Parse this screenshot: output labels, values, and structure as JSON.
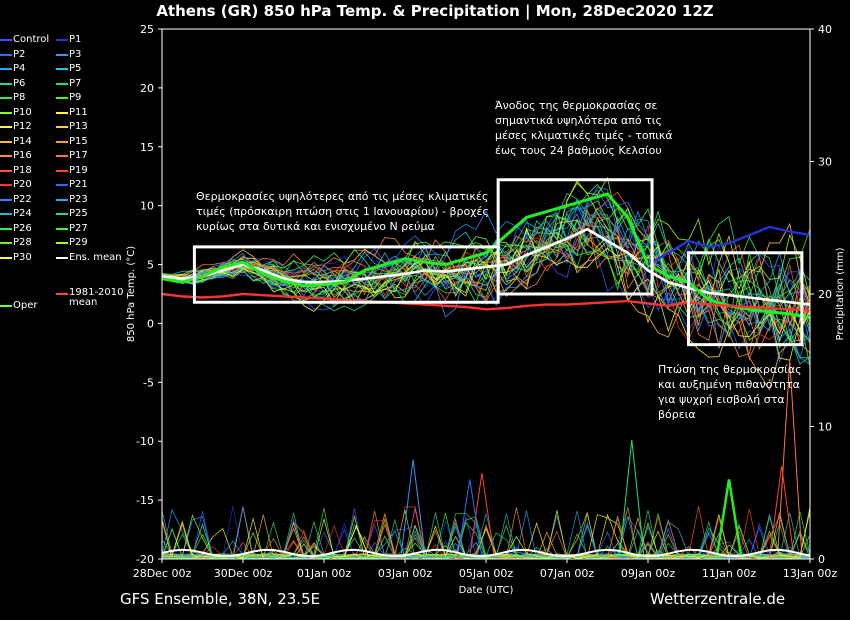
{
  "title": "Athens  (GR)  850 hPa Temp. & Precipitation | Mon, 28Dec2020 12Z",
  "footer_left": "GFS Ensemble, 38N, 23.5E",
  "footer_right": "Wetterzentrale.de",
  "chart_data": {
    "type": "line",
    "xlabel": "Date (UTC)",
    "ylabel": "850 hPa Temp. (°C)",
    "y2label": "Precipitation (mm)",
    "x_ticks": [
      "28Dec 00z",
      "30Dec 00z",
      "01Jan 00z",
      "03Jan 00z",
      "05Jan 00z",
      "07Jan 00z",
      "09Jan 00z",
      "11Jan 00z",
      "13Jan 00z"
    ],
    "x_tick_days": [
      0,
      2,
      4,
      6,
      8,
      10,
      12,
      14,
      16
    ],
    "xlim_days": [
      0,
      16
    ],
    "ylim": [
      -20,
      25
    ],
    "y_ticks": [
      -20,
      -15,
      -10,
      -5,
      0,
      5,
      10,
      15,
      20,
      25
    ],
    "y2lim": [
      0,
      40
    ],
    "y2_ticks": [
      0,
      10,
      20,
      30,
      40
    ],
    "grid": false,
    "legend_placement": "left outside",
    "legend": [
      {
        "name": "Control",
        "color": "#3355ff"
      },
      {
        "name": "P1",
        "color": "#2233dd"
      },
      {
        "name": "P2",
        "color": "#2f6bff"
      },
      {
        "name": "P3",
        "color": "#3399ff"
      },
      {
        "name": "P4",
        "color": "#22aaff"
      },
      {
        "name": "P5",
        "color": "#22ccdd"
      },
      {
        "name": "P6",
        "color": "#22dd99"
      },
      {
        "name": "P7",
        "color": "#22dd77"
      },
      {
        "name": "P8",
        "color": "#33ee55"
      },
      {
        "name": "P9",
        "color": "#55ee22"
      },
      {
        "name": "P10",
        "color": "#88ff22"
      },
      {
        "name": "P11",
        "color": "#ffff22"
      },
      {
        "name": "P12",
        "color": "#ffee55"
      },
      {
        "name": "P13",
        "color": "#ffcc44"
      },
      {
        "name": "P14",
        "color": "#ffbb33"
      },
      {
        "name": "P15",
        "color": "#ff9933"
      },
      {
        "name": "P16",
        "color": "#ff8844"
      },
      {
        "name": "P17",
        "color": "#ff7744"
      },
      {
        "name": "P18",
        "color": "#ff5533"
      },
      {
        "name": "P19",
        "color": "#ff4422"
      },
      {
        "name": "P20",
        "color": "#ff3333"
      },
      {
        "name": "P21",
        "color": "#3366ff"
      },
      {
        "name": "P22",
        "color": "#2288ff"
      },
      {
        "name": "P23",
        "color": "#22aaee"
      },
      {
        "name": "P24",
        "color": "#22bbcc"
      },
      {
        "name": "P25",
        "color": "#22dd88"
      },
      {
        "name": "P26",
        "color": "#33ee66"
      },
      {
        "name": "P27",
        "color": "#44ee44"
      },
      {
        "name": "P28",
        "color": "#77ee33"
      },
      {
        "name": "P29",
        "color": "#99ff22"
      },
      {
        "name": "P30",
        "color": "#ffff33"
      },
      {
        "name": "Ens. mean",
        "color": "#ffffff"
      },
      {
        "name": "1981-2010 mean",
        "color": "#ff4444"
      },
      {
        "name": "Oper",
        "color": "#66ff33"
      }
    ],
    "series": [
      {
        "name": "Ens. mean",
        "color": "#ffffff",
        "x": [
          0,
          0.5,
          1,
          1.5,
          2,
          2.5,
          3,
          3.5,
          4,
          4.5,
          5,
          5.5,
          6,
          6.5,
          7,
          7.5,
          8,
          8.5,
          9,
          9.5,
          10,
          10.5,
          11,
          11.5,
          12,
          12.5,
          13,
          13.5,
          14,
          14.5,
          15,
          15.5,
          16
        ],
        "y": [
          4,
          3.8,
          4,
          4.5,
          5,
          4.5,
          3.8,
          3.5,
          3.5,
          3.6,
          3.8,
          4,
          4.2,
          4.5,
          4.4,
          4.6,
          4.8,
          5,
          5.8,
          6.5,
          7.2,
          8,
          7,
          6,
          4.5,
          3.5,
          3,
          2.6,
          2.4,
          2.2,
          2,
          1.8,
          1.6
        ]
      },
      {
        "name": "Oper",
        "color": "#22ee22",
        "x": [
          0,
          0.5,
          1,
          1.5,
          2,
          2.5,
          3,
          3.5,
          4,
          4.5,
          5,
          5.5,
          6,
          6.5,
          7,
          7.5,
          8,
          8.5,
          9,
          9.5,
          10,
          10.5,
          11,
          11.5,
          12,
          12.5,
          13,
          13.5,
          14,
          14.5,
          15,
          15.5,
          16
        ],
        "y": [
          3.8,
          3.5,
          4,
          4.8,
          5.2,
          4.2,
          3.6,
          3.2,
          3.3,
          3.5,
          4.5,
          5,
          5.5,
          5.2,
          5,
          5.5,
          6,
          7.5,
          9,
          9.5,
          10,
          10.5,
          11,
          9,
          5,
          4,
          3.5,
          2,
          1.5,
          1.2,
          1,
          0.8,
          0.5
        ]
      },
      {
        "name": "1981-2010 mean",
        "color": "#ff3333",
        "x": [
          0,
          0.5,
          1,
          1.5,
          2,
          2.5,
          3,
          3.5,
          4,
          4.5,
          5,
          5.5,
          6,
          6.5,
          7,
          7.5,
          8,
          8.5,
          9,
          9.5,
          10,
          10.5,
          11,
          11.5,
          12,
          12.5,
          13,
          13.5,
          14,
          14.5,
          15,
          15.5,
          16
        ],
        "y": [
          2.5,
          2.3,
          2.2,
          2.3,
          2.5,
          2.4,
          2.3,
          2.2,
          2.1,
          2,
          1.9,
          1.8,
          1.7,
          1.6,
          1.5,
          1.4,
          1.2,
          1.3,
          1.5,
          1.6,
          1.6,
          1.7,
          1.8,
          1.9,
          1.7,
          1.5,
          1.8,
          1.6,
          1.5,
          1.4,
          1.3,
          1.2,
          1.1
        ]
      },
      {
        "name": "P1",
        "color": "#2233dd",
        "x": [
          12,
          12.5,
          13,
          13.5,
          14,
          14.5,
          15,
          15.5,
          16
        ],
        "y": [
          5,
          6,
          7,
          6.5,
          6.8,
          7.5,
          8.2,
          7.8,
          7.5
        ]
      }
    ],
    "precip_peaks": [
      {
        "x": 6.2,
        "y": 7.5,
        "color": "#3399ff"
      },
      {
        "x": 7.9,
        "y": 6.5,
        "color": "#ff4422"
      },
      {
        "x": 11.6,
        "y": 9,
        "color": "#22dd77"
      },
      {
        "x": 14,
        "y": 6,
        "color": "#22ee22"
      },
      {
        "x": 15.5,
        "y": 15,
        "color": "#ff7744"
      },
      {
        "x": 15.3,
        "y": 7,
        "color": "#ff4422"
      },
      {
        "x": 7.6,
        "y": 6,
        "color": "#2f6bff"
      },
      {
        "x": 4.8,
        "y": 2.5,
        "color": "#ffff22"
      }
    ],
    "annotations": [
      {
        "text": "Θερμοκρασίες υψηλότερες από τις μέσες κλιματικές τιμές (πρόσκαιρη πτώση στις 1 Ιανουαρίου) - βροχές κυρίως στα δυτικά και ενισχυμένο Ν ρεύμα",
        "lines": [
          "Θερμοκρασίες υψηλότερες από τις μέσες κλιματικές",
          "τιμές (πρόσκαιρη πτώση στις 1 Ιανουαρίου) - βροχές",
          "κυρίως στα δυτικά και ενισχυμένο Ν ρεύμα"
        ]
      },
      {
        "text": "Άνοδος της θερμοκρασίας σε σημαντικά υψηλότερα από τις μέσες κλιματικές τιμές - τοπικά έως τους 24 βαθμούς Κελσίου",
        "lines": [
          "Άνοδος της θερμοκρασίας σε",
          "σημαντικά υψηλότερα από τις",
          "μέσες κλιματικές τιμές - τοπικά",
          "έως τους 24 βαθμούς Κελσίου"
        ]
      },
      {
        "text": "Πτώση της θερμοκρασίας και αυξημένη πιθανότητα για ψυχρή εισβολή στα βόρεια",
        "lines": [
          "Πτώση της θερμοκρασίας",
          "και αυξημένη πιθανότητα",
          "για ψυχρή εισβολή στα",
          "βόρεια"
        ]
      }
    ]
  }
}
